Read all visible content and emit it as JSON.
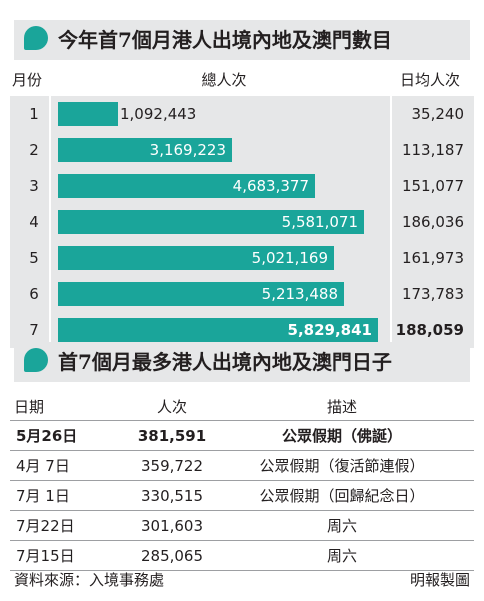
{
  "chart_data": [
    {
      "type": "bar",
      "title": "今年首7個月港人出境內地及澳門數目",
      "columns": [
        "月份",
        "總人次",
        "日均人次"
      ],
      "categories": [
        "1",
        "2",
        "3",
        "4",
        "5",
        "6",
        "7"
      ],
      "series": [
        {
          "values": [
            1092443,
            3169223,
            4683377,
            5581071,
            5021169,
            5213488,
            5829841
          ],
          "labels": [
            "1,092,443",
            "3,169,223",
            "4,683,377",
            "5,581,071",
            "5,021,169",
            "5,213,488",
            "5,829,841"
          ]
        }
      ],
      "daily": [
        "35,240",
        "113,187",
        "151,077",
        "186,036",
        "161,973",
        "173,783",
        "188,059"
      ],
      "highlight_index": 6,
      "bar_max": 5829841
    },
    {
      "type": "table",
      "title": "首7個月最多港人出境內地及澳門日子",
      "columns": [
        "日期",
        "人次",
        "描述"
      ],
      "rows": [
        {
          "date": "5月26日",
          "count": "381,591",
          "desc": "公眾假期（佛誕）",
          "bold": true
        },
        {
          "date": "4月 7日",
          "count": "359,722",
          "desc": "公眾假期（復活節連假）",
          "bold": false
        },
        {
          "date": "7月 1日",
          "count": "330,515",
          "desc": "公眾假期（回歸紀念日）",
          "bold": false
        },
        {
          "date": "7月22日",
          "count": "301,603",
          "desc": "周六",
          "bold": false
        },
        {
          "date": "7月15日",
          "count": "285,065",
          "desc": "周六",
          "bold": false
        }
      ]
    }
  ],
  "footer": {
    "source": "資料來源：入境事務處",
    "credit": "明報製圖"
  },
  "colors": {
    "bar": "#1aa59a",
    "band": "#e6e7e8"
  }
}
